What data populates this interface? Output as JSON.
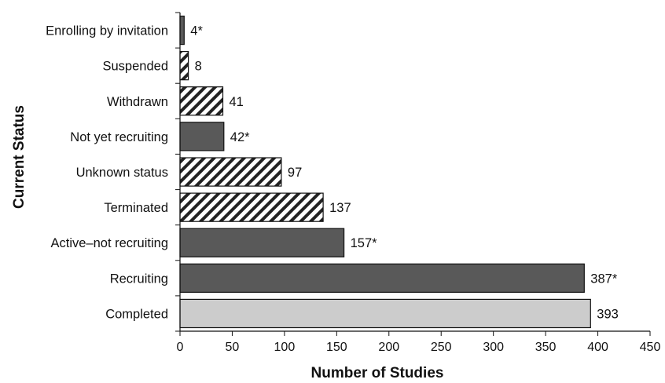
{
  "chart_data": {
    "type": "bar",
    "orientation": "horizontal",
    "xlabel": "Number of Studies",
    "ylabel": "Current Status",
    "xlim": [
      0,
      450
    ],
    "xticks": [
      0,
      50,
      100,
      150,
      200,
      250,
      300,
      350,
      400,
      450
    ],
    "grid": false,
    "legend": "none",
    "categories": [
      "Enrolling by invitation",
      "Suspended",
      "Withdrawn",
      "Not yet recruiting",
      "Unknown status",
      "Terminated",
      "Active–not recruiting",
      "Recruiting",
      "Completed"
    ],
    "values": [
      4,
      8,
      41,
      42,
      97,
      137,
      157,
      387,
      393
    ],
    "value_labels": [
      "4*",
      "8",
      "41",
      "42*",
      "97",
      "137",
      "157*",
      "387*",
      "393"
    ],
    "fills": [
      "dark",
      "hatched",
      "hatched",
      "dark",
      "hatched",
      "hatched",
      "dark",
      "dark",
      "light"
    ],
    "colors": {
      "dark": "#595959",
      "light": "#cccccc",
      "hatch_stroke": "#222222",
      "outline": "#111111"
    }
  }
}
